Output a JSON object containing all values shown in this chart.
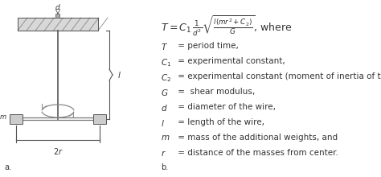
{
  "bg_color": "#ffffff",
  "label_a": "a.",
  "label_b": "b.",
  "definitions": [
    [
      "$T$",
      " = period time,"
    ],
    [
      "$C_1$",
      " = experimental constant,"
    ],
    [
      "$C_2$",
      " = experimental constant (moment of inertia of the rod),"
    ],
    [
      "$G$",
      " =  shear modulus,"
    ],
    [
      "$d$",
      " = diameter of the wire,"
    ],
    [
      "$l$",
      " = length of the wire,"
    ],
    [
      "$m$",
      " = mass of the additional weights, and"
    ],
    [
      "$r$",
      " = distance of the masses from center."
    ]
  ],
  "fig_width": 4.74,
  "fig_height": 2.2,
  "dpi": 100
}
